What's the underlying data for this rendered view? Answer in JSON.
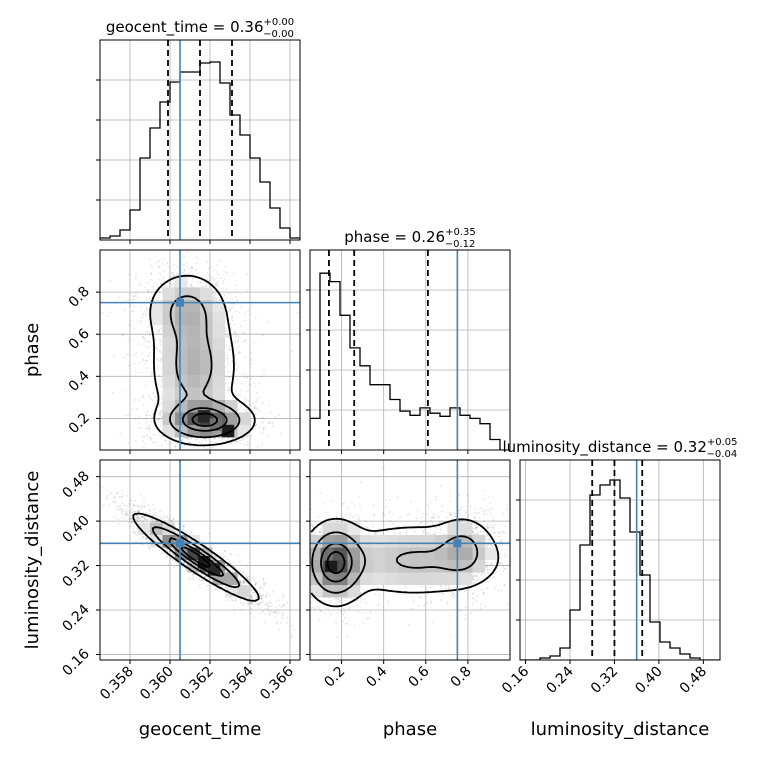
{
  "chart_data": {
    "type": "corner",
    "parameters": [
      "geocent_time",
      "phase",
      "luminosity_distance"
    ],
    "truth_values": {
      "geocent_time": 0.3605,
      "phase": 0.75,
      "luminosity_distance": 0.36
    },
    "truth_color": "#4682b4",
    "grid": true,
    "diagonal": [
      {
        "param": "geocent_time",
        "title_main": "geocent_time = 0.36",
        "title_sup": "+0.00",
        "title_sub": "−0.00",
        "quantiles": [
          0.3599,
          0.3615,
          0.3631
        ],
        "xlim": [
          0.3565,
          0.3665
        ],
        "bins_x": [
          0.3565,
          0.357,
          0.3575,
          0.358,
          0.3585,
          0.359,
          0.3595,
          0.36,
          0.3605,
          0.361,
          0.3615,
          0.362,
          0.3625,
          0.363,
          0.3635,
          0.364,
          0.3645,
          0.365,
          0.3655,
          0.366,
          0.3665
        ],
        "counts": [
          2,
          4,
          10,
          30,
          82,
          112,
          138,
          158,
          168,
          168,
          177,
          178,
          157,
          125,
          105,
          82,
          58,
          32,
          12,
          2
        ],
        "ymax": 200
      },
      {
        "param": "phase",
        "title_main": "phase = 0.26",
        "title_sup": "+0.35",
        "title_sub": "−0.12",
        "quantiles": [
          0.14,
          0.26,
          0.61
        ],
        "xlim": [
          0.05,
          1.0
        ],
        "bins_x": [
          0.05,
          0.0975,
          0.145,
          0.1925,
          0.24,
          0.2875,
          0.335,
          0.3825,
          0.43,
          0.4775,
          0.525,
          0.5725,
          0.62,
          0.6675,
          0.715,
          0.7625,
          0.81,
          0.8575,
          0.905,
          0.9525,
          1.0
        ],
        "counts": [
          30,
          168,
          160,
          128,
          97,
          80,
          62,
          62,
          48,
          37,
          33,
          40,
          35,
          32,
          40,
          33,
          30,
          25,
          10,
          0
        ],
        "ymax": 190
      },
      {
        "param": "luminosity_distance",
        "title_main": "luminosity_distance = 0.32",
        "title_sup": "+0.05",
        "title_sub": "−0.04",
        "quantiles": [
          0.28,
          0.32,
          0.37
        ],
        "xlim": [
          0.15,
          0.51
        ],
        "bins_x": [
          0.15,
          0.168,
          0.186,
          0.204,
          0.222,
          0.24,
          0.258,
          0.276,
          0.294,
          0.312,
          0.33,
          0.348,
          0.366,
          0.384,
          0.402,
          0.42,
          0.438,
          0.456,
          0.474,
          0.492,
          0.51
        ],
        "counts": [
          0,
          0,
          2,
          4,
          12,
          50,
          115,
          165,
          175,
          180,
          162,
          128,
          85,
          38,
          18,
          12,
          6,
          2,
          0,
          0
        ],
        "ymax": 200
      }
    ],
    "panels": [
      {
        "row": 1,
        "col": 0,
        "x_param": "geocent_time",
        "y_param": "phase",
        "xlim": [
          0.3565,
          0.3665
        ],
        "ylim": [
          0.05,
          1.0
        ],
        "density_blobs": [
          {
            "x": 0.3618,
            "y": 0.19,
            "sx": 0.0011,
            "sy": 0.05,
            "w": 1.0
          },
          {
            "x": 0.3612,
            "y": 0.45,
            "sx": 0.0011,
            "sy": 0.16,
            "w": 0.45
          },
          {
            "x": 0.3608,
            "y": 0.72,
            "sx": 0.001,
            "sy": 0.09,
            "w": 0.35
          }
        ],
        "dark_bins": [
          {
            "x": 0.3617,
            "y": 0.21,
            "v": 0.9
          },
          {
            "x": 0.3629,
            "y": 0.14,
            "v": 0.95
          },
          {
            "x": 0.3623,
            "y": 0.17,
            "v": 0.6
          }
        ]
      },
      {
        "row": 2,
        "col": 0,
        "x_param": "geocent_time",
        "y_param": "luminosity_distance",
        "xlim": [
          0.3565,
          0.3665
        ],
        "ylim": [
          0.15,
          0.51
        ],
        "density_blobs": [
          {
            "x": 0.3613,
            "y": 0.335,
            "sx": 0.0014,
            "sy": 0.035,
            "rho": -0.93,
            "w": 1.0
          }
        ],
        "dark_bins": [
          {
            "x": 0.3617,
            "y": 0.326,
            "v": 0.95
          },
          {
            "x": 0.3622,
            "y": 0.313,
            "v": 0.9
          },
          {
            "x": 0.3605,
            "y": 0.36,
            "v": 0.4
          }
        ]
      },
      {
        "row": 2,
        "col": 1,
        "x_param": "phase",
        "y_param": "luminosity_distance",
        "xlim": [
          0.05,
          1.0
        ],
        "ylim": [
          0.15,
          0.51
        ],
        "density_blobs": [
          {
            "x": 0.17,
            "y": 0.325,
            "sx": 0.07,
            "sy": 0.035,
            "w": 1.0
          },
          {
            "x": 0.55,
            "y": 0.33,
            "sx": 0.22,
            "sy": 0.035,
            "w": 0.35
          },
          {
            "x": 0.78,
            "y": 0.35,
            "sx": 0.07,
            "sy": 0.03,
            "w": 0.3
          }
        ],
        "dark_bins": [
          {
            "x": 0.15,
            "y": 0.32,
            "v": 0.95
          },
          {
            "x": 0.19,
            "y": 0.34,
            "v": 0.7
          },
          {
            "x": 0.13,
            "y": 0.34,
            "v": 0.6
          }
        ]
      }
    ],
    "axes": {
      "geocent_time": {
        "ticks": [
          0.358,
          0.36,
          0.362,
          0.364,
          0.366
        ],
        "tick_labels": [
          "0.358",
          "0.360",
          "0.362",
          "0.364",
          "0.366"
        ],
        "label": "geocent_time"
      },
      "phase": {
        "ticks": [
          0.2,
          0.4,
          0.6,
          0.8
        ],
        "tick_labels": [
          "0.2",
          "0.4",
          "0.6",
          "0.8"
        ],
        "label": "phase"
      },
      "luminosity_distance": {
        "ticks": [
          0.16,
          0.24,
          0.32,
          0.4,
          0.48
        ],
        "tick_labels": [
          "0.16",
          "0.24",
          "0.32",
          "0.40",
          "0.48"
        ],
        "label": "luminosity_distance"
      }
    }
  }
}
